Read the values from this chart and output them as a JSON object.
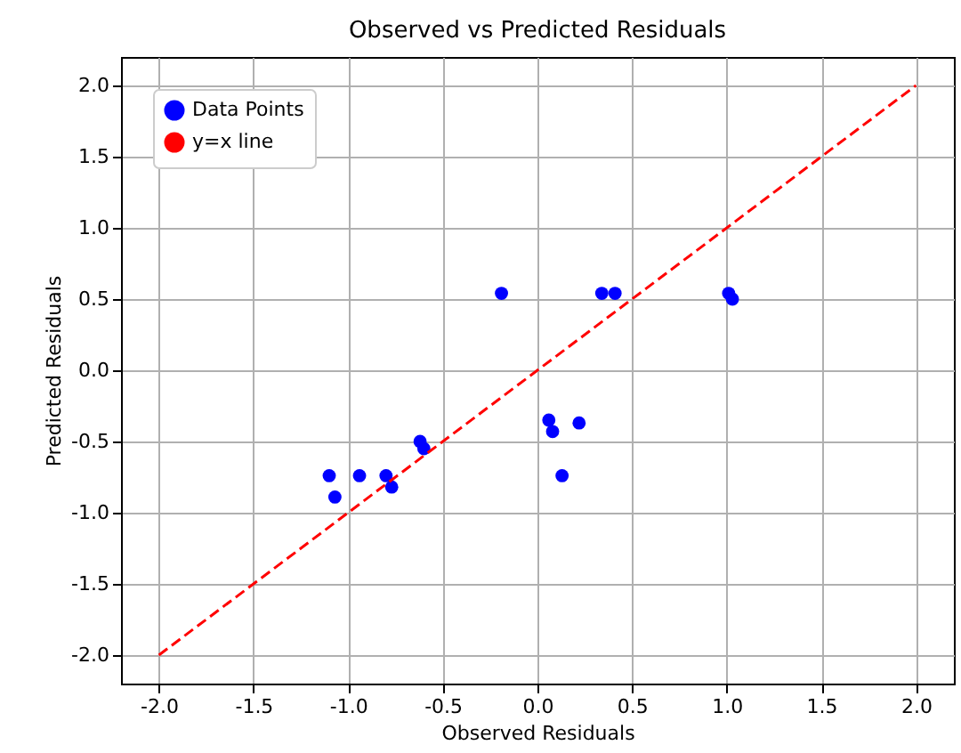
{
  "chart_data": {
    "type": "scatter",
    "title": "Observed vs Predicted Residuals",
    "xlabel": "Observed Residuals",
    "ylabel": "Predicted Residuals",
    "xlim": [
      -2.2,
      2.2
    ],
    "ylim": [
      -2.2,
      2.2
    ],
    "xticks": [
      {
        "value": -2,
        "label": "-2.0"
      },
      -1.5,
      {
        "value": -1,
        "label": "-1.0"
      },
      -0.5,
      {
        "value": 0,
        "label": "0.0"
      },
      0.5,
      {
        "value": 1,
        "label": "1.0"
      },
      1.5,
      {
        "value": 2,
        "label": "2.0"
      }
    ],
    "yticks": [
      {
        "value": -2,
        "label": "-2.0"
      },
      -1.5,
      {
        "value": -1,
        "label": "-1.0"
      },
      -0.5,
      {
        "value": 0,
        "label": "0.0"
      },
      0.5,
      {
        "value": 1,
        "label": "1.0"
      },
      1.5,
      {
        "value": 2,
        "label": "2.0"
      }
    ],
    "grid": true,
    "legend": "top left",
    "series": [
      {
        "name": "Data Points",
        "color": "#0000ff",
        "marker": "circle",
        "x": [
          -1.1,
          -1.07,
          -0.94,
          -0.8,
          -0.77,
          -0.62,
          -0.6,
          -0.19,
          0.06,
          0.08,
          0.13,
          0.22,
          0.34,
          0.41,
          1.01,
          1.03
        ],
        "values": [
          -0.74,
          -0.89,
          -0.74,
          -0.74,
          -0.82,
          -0.5,
          -0.55,
          0.54,
          -0.35,
          -0.43,
          -0.74,
          -0.37,
          0.54,
          0.54,
          0.54,
          0.5
        ]
      },
      {
        "name": "y=x line",
        "type": "line",
        "color": "#ff0000",
        "line_style": "dashed",
        "x": [
          -2,
          2
        ],
        "values": [
          -2,
          2
        ]
      }
    ]
  }
}
